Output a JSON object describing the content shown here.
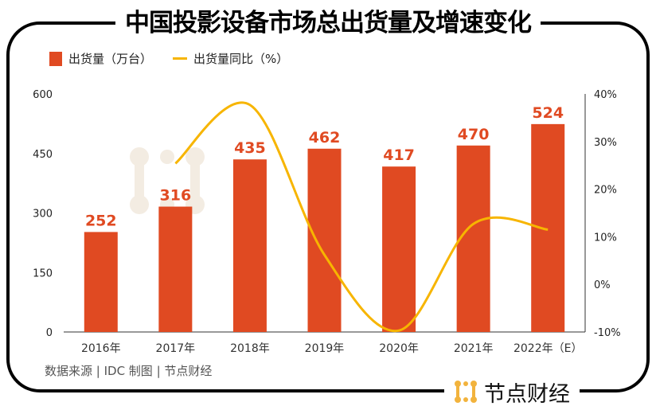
{
  "title": "中国投影设备市场总出货量及增速变化",
  "legend": {
    "bar": "出货量（万台）",
    "line": "出货量同比（%）"
  },
  "source": "数据来源 | IDC  制图 | 节点财经",
  "logo_text": "节点财经",
  "watermark": "节点财经",
  "colors": {
    "bar": "#E04A22",
    "line": "#F7B500",
    "label": "#E04A22"
  },
  "chart_data": {
    "type": "bar+line",
    "title": "中国投影设备市场总出货量及增速变化",
    "categories": [
      "2016年",
      "2017年",
      "2018年",
      "2019年",
      "2020年",
      "2021年",
      "2022年（E）"
    ],
    "series": [
      {
        "name": "出货量（万台）",
        "type": "bar",
        "axis": "left",
        "values": [
          252,
          316,
          435,
          462,
          417,
          470,
          524
        ]
      },
      {
        "name": "出货量同比（%）",
        "type": "line",
        "axis": "right",
        "smooth": true,
        "values": [
          null,
          25.4,
          37.7,
          6.2,
          -9.7,
          12.7,
          11.5
        ]
      }
    ],
    "y_left": {
      "min": 0,
      "max": 600,
      "ticks": [
        "0",
        "150",
        "300",
        "450",
        "600"
      ]
    },
    "y_right": {
      "min": -10,
      "max": 40,
      "ticks": [
        "-10%",
        "0%",
        "10%",
        "20%",
        "30%",
        "40%"
      ]
    },
    "legend_position": "top-left",
    "grid": false
  }
}
